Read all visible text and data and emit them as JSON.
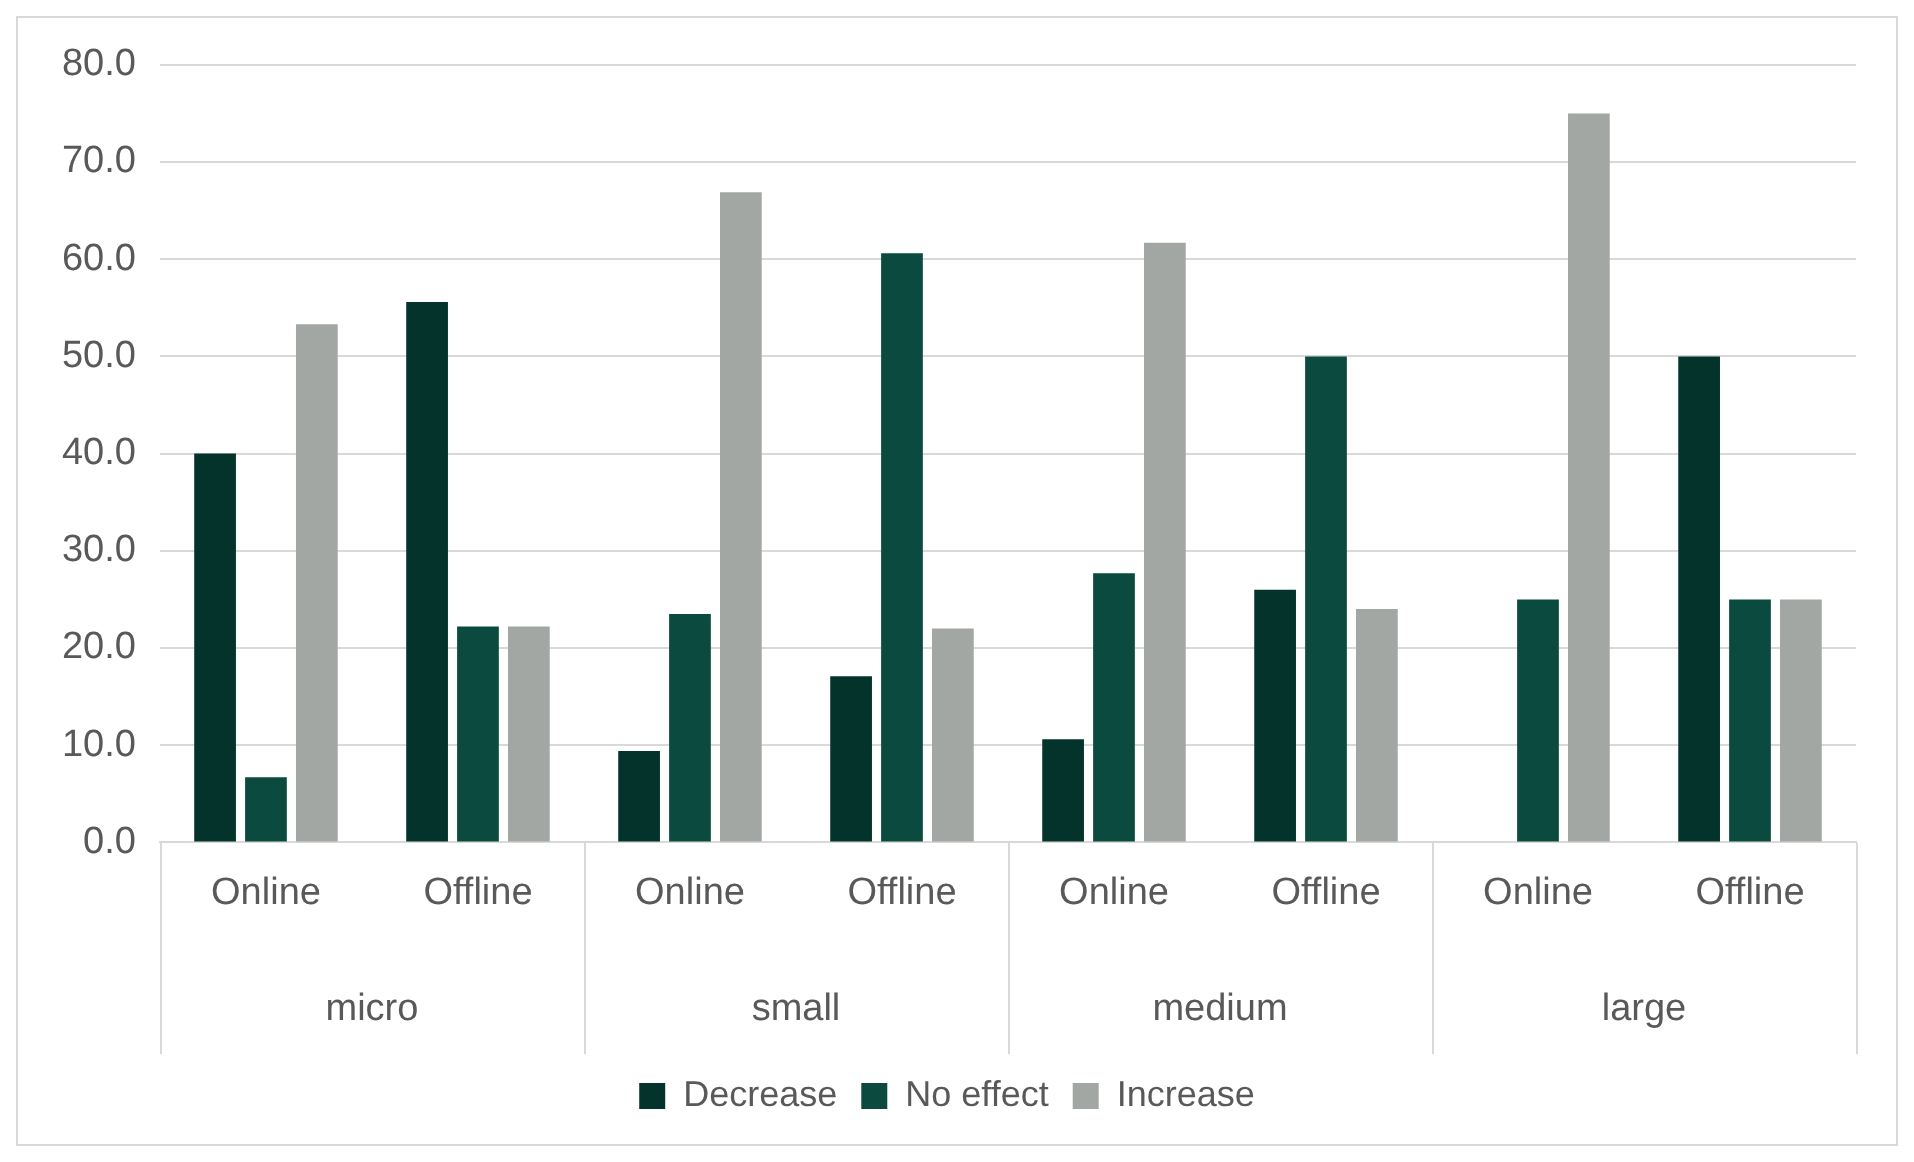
{
  "chart_data": {
    "type": "bar",
    "categories": [
      "Online",
      "Offline",
      "Online",
      "Offline",
      "Online",
      "Offline",
      "Online",
      "Offline"
    ],
    "annotations": [
      "micro",
      "small",
      "medium",
      "large"
    ],
    "series": [
      {
        "name": "Decrease",
        "color": "#03332b",
        "values": [
          40.0,
          55.6,
          9.4,
          17.1,
          10.6,
          26.0,
          0,
          50.0
        ]
      },
      {
        "name": "No effect",
        "color": "#0b4a3f",
        "values": [
          6.7,
          22.2,
          23.5,
          60.6,
          27.7,
          50.0,
          25.0,
          25.0
        ]
      },
      {
        "name": "Increase",
        "color": "#a2a7a4",
        "values": [
          53.3,
          22.2,
          66.9,
          22.0,
          61.7,
          24.0,
          75.0,
          25.0
        ]
      }
    ],
    "ylim": [
      0,
      80
    ],
    "yticks": [
      {
        "value": 0,
        "label": "0.0"
      },
      {
        "value": 10,
        "label": "10.0"
      },
      {
        "value": 20,
        "label": "20.0"
      },
      {
        "value": 30,
        "label": "30.0"
      },
      {
        "value": 40,
        "label": "40.0"
      },
      {
        "value": 50,
        "label": "50.0"
      },
      {
        "value": 60,
        "label": "60.0"
      },
      {
        "value": 70,
        "label": "70.0"
      },
      {
        "value": 80,
        "label": "80.0"
      }
    ],
    "grid": "y",
    "legend": "bottom"
  }
}
